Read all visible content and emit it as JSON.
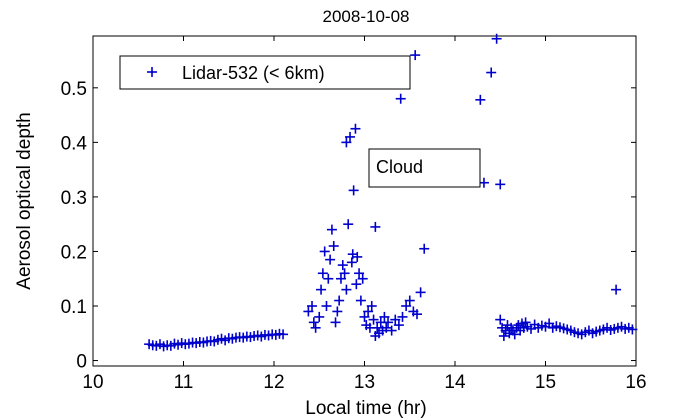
{
  "chart_data": {
    "type": "scatter",
    "title": "2008-10-08",
    "xlabel": "Local time (hr)",
    "ylabel": "Aerosol optical depth",
    "xlim": [
      10,
      16
    ],
    "ylim": [
      -0.01,
      0.595
    ],
    "xticks": [
      10,
      11,
      12,
      13,
      14,
      15,
      16
    ],
    "yticks": [
      0,
      0.1,
      0.2,
      0.3,
      0.4,
      0.5
    ],
    "ytick_labels": [
      "0",
      "0.1",
      "0.2",
      "0.3",
      "0.4",
      "0.5"
    ],
    "grid": false,
    "legend_position": "top-left",
    "marker": "+",
    "color": "#0000cc",
    "annotation": "Cloud",
    "series": [
      {
        "name": "Lidar-532 (< 6km)",
        "points": [
          [
            10.62,
            0.03
          ],
          [
            10.66,
            0.028
          ],
          [
            10.7,
            0.027
          ],
          [
            10.74,
            0.03
          ],
          [
            10.78,
            0.026
          ],
          [
            10.82,
            0.028
          ],
          [
            10.86,
            0.027
          ],
          [
            10.9,
            0.031
          ],
          [
            10.94,
            0.029
          ],
          [
            10.98,
            0.032
          ],
          [
            11.02,
            0.03
          ],
          [
            11.06,
            0.031
          ],
          [
            11.1,
            0.033
          ],
          [
            11.14,
            0.032
          ],
          [
            11.18,
            0.034
          ],
          [
            11.22,
            0.033
          ],
          [
            11.26,
            0.035
          ],
          [
            11.3,
            0.036
          ],
          [
            11.34,
            0.035
          ],
          [
            11.38,
            0.038
          ],
          [
            11.42,
            0.04
          ],
          [
            11.46,
            0.037
          ],
          [
            11.5,
            0.041
          ],
          [
            11.54,
            0.04
          ],
          [
            11.58,
            0.042
          ],
          [
            11.62,
            0.043
          ],
          [
            11.66,
            0.042
          ],
          [
            11.7,
            0.044
          ],
          [
            11.74,
            0.043
          ],
          [
            11.78,
            0.045
          ],
          [
            11.82,
            0.046
          ],
          [
            11.86,
            0.044
          ],
          [
            11.9,
            0.047
          ],
          [
            11.94,
            0.046
          ],
          [
            11.98,
            0.048
          ],
          [
            12.02,
            0.047
          ],
          [
            12.06,
            0.049
          ],
          [
            12.1,
            0.048
          ],
          [
            12.38,
            0.09
          ],
          [
            12.42,
            0.1
          ],
          [
            12.44,
            0.07
          ],
          [
            12.46,
            0.06
          ],
          [
            12.5,
            0.08
          ],
          [
            12.52,
            0.13
          ],
          [
            12.54,
            0.16
          ],
          [
            12.56,
            0.2
          ],
          [
            12.58,
            0.1
          ],
          [
            12.6,
            0.15
          ],
          [
            12.62,
            0.185
          ],
          [
            12.64,
            0.24
          ],
          [
            12.66,
            0.21
          ],
          [
            12.68,
            0.07
          ],
          [
            12.7,
            0.09
          ],
          [
            12.72,
            0.11
          ],
          [
            12.74,
            0.15
          ],
          [
            12.76,
            0.175
          ],
          [
            12.78,
            0.16
          ],
          [
            12.8,
            0.13
          ],
          [
            12.8,
            0.4
          ],
          [
            12.82,
            0.25
          ],
          [
            12.84,
            0.41
          ],
          [
            12.86,
            0.18
          ],
          [
            12.87,
            0.195
          ],
          [
            12.88,
            0.312
          ],
          [
            12.9,
            0.425
          ],
          [
            12.91,
            0.14
          ],
          [
            12.92,
            0.19
          ],
          [
            12.94,
            0.16
          ],
          [
            12.96,
            0.11
          ],
          [
            12.98,
            0.15
          ],
          [
            13.0,
            0.08
          ],
          [
            13.02,
            0.065
          ],
          [
            13.04,
            0.09
          ],
          [
            13.06,
            0.06
          ],
          [
            13.08,
            0.1
          ],
          [
            13.1,
            0.075
          ],
          [
            13.12,
            0.045
          ],
          [
            13.14,
            0.06
          ],
          [
            13.16,
            0.05
          ],
          [
            13.18,
            0.07
          ],
          [
            13.2,
            0.055
          ],
          [
            13.22,
            0.08
          ],
          [
            13.24,
            0.06
          ],
          [
            13.26,
            0.07
          ],
          [
            13.3,
            0.055
          ],
          [
            13.34,
            0.075
          ],
          [
            13.38,
            0.065
          ],
          [
            13.42,
            0.08
          ],
          [
            13.46,
            0.1
          ],
          [
            13.5,
            0.11
          ],
          [
            13.54,
            0.09
          ],
          [
            13.58,
            0.085
          ],
          [
            13.62,
            0.125
          ],
          [
            13.66,
            0.205
          ],
          [
            13.4,
            0.48
          ],
          [
            13.56,
            0.56
          ],
          [
            13.12,
            0.245
          ],
          [
            14.28,
            0.478
          ],
          [
            14.32,
            0.326
          ],
          [
            14.4,
            0.528
          ],
          [
            14.46,
            0.59
          ],
          [
            14.5,
            0.323
          ],
          [
            14.5,
            0.075
          ],
          [
            14.52,
            0.06
          ],
          [
            14.54,
            0.045
          ],
          [
            14.56,
            0.055
          ],
          [
            14.58,
            0.065
          ],
          [
            14.6,
            0.05
          ],
          [
            14.62,
            0.06
          ],
          [
            14.64,
            0.055
          ],
          [
            14.66,
            0.048
          ],
          [
            14.68,
            0.06
          ],
          [
            14.7,
            0.065
          ],
          [
            14.72,
            0.055
          ],
          [
            14.74,
            0.068
          ],
          [
            14.76,
            0.06
          ],
          [
            14.78,
            0.07
          ],
          [
            14.8,
            0.062
          ],
          [
            14.84,
            0.058
          ],
          [
            14.88,
            0.066
          ],
          [
            14.92,
            0.06
          ],
          [
            14.96,
            0.064
          ],
          [
            15.0,
            0.062
          ],
          [
            15.04,
            0.068
          ],
          [
            15.08,
            0.06
          ],
          [
            15.12,
            0.063
          ],
          [
            15.16,
            0.061
          ],
          [
            15.2,
            0.059
          ],
          [
            15.24,
            0.057
          ],
          [
            15.28,
            0.055
          ],
          [
            15.32,
            0.052
          ],
          [
            15.36,
            0.05
          ],
          [
            15.4,
            0.048
          ],
          [
            15.44,
            0.052
          ],
          [
            15.48,
            0.055
          ],
          [
            15.52,
            0.05
          ],
          [
            15.56,
            0.053
          ],
          [
            15.6,
            0.055
          ],
          [
            15.64,
            0.057
          ],
          [
            15.68,
            0.06
          ],
          [
            15.72,
            0.056
          ],
          [
            15.76,
            0.058
          ],
          [
            15.78,
            0.13
          ],
          [
            15.8,
            0.06
          ],
          [
            15.84,
            0.062
          ],
          [
            15.88,
            0.058
          ],
          [
            15.92,
            0.06
          ],
          [
            15.96,
            0.057
          ]
        ]
      }
    ]
  }
}
